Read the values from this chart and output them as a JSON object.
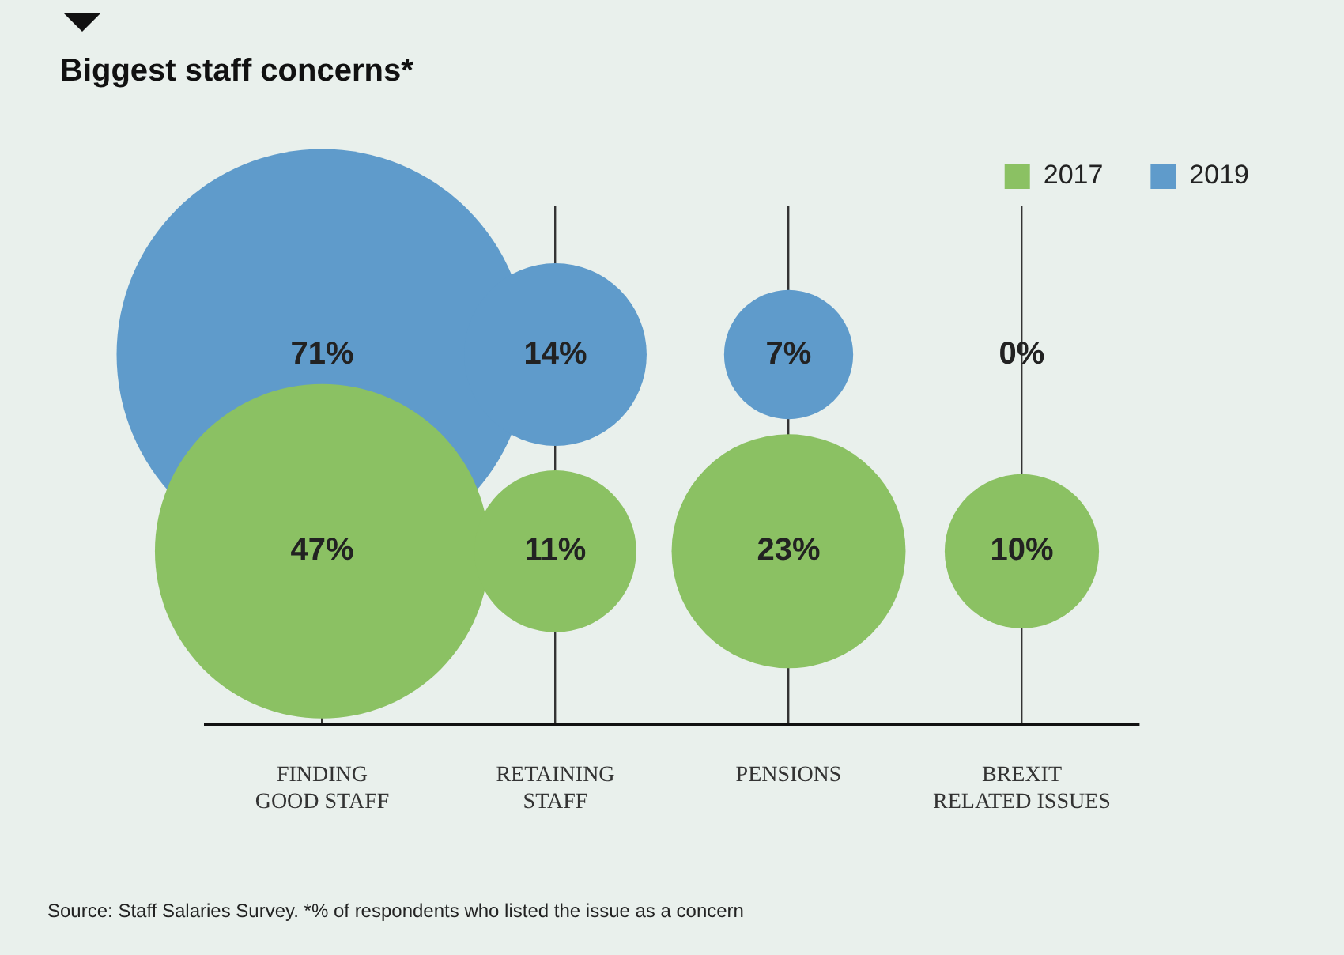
{
  "chart_data": {
    "type": "other",
    "title": "Biggest staff concerns*",
    "categories": [
      "FINDING GOOD STAFF",
      "RETAINING STAFF",
      "PENSIONS",
      "BREXIT RELATED ISSUES"
    ],
    "series": [
      {
        "name": "2017",
        "color": "#8bc163",
        "values": [
          47,
          11,
          23,
          10
        ],
        "value_labels": [
          "47%",
          "11%",
          "23%",
          "10%"
        ]
      },
      {
        "name": "2019",
        "color": "#5f9bcb",
        "values": [
          71,
          14,
          7,
          0
        ],
        "value_labels": [
          "71%",
          "14%",
          "7%",
          "0%"
        ]
      }
    ],
    "legend": "top right",
    "annotations": [
      "Source: Staff Salaries Survey. *% of respondents who listed the issue as a concern"
    ]
  }
}
